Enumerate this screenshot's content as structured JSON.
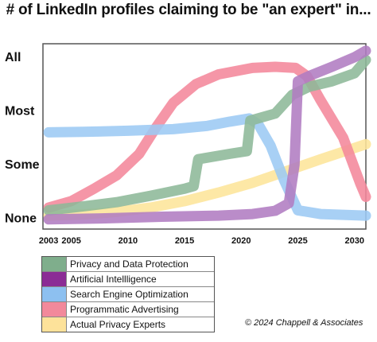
{
  "chart_data": {
    "type": "line",
    "title": "# of LinkedIn profiles claiming to be \"an expert\" in...",
    "xlabel": "",
    "ylabel": "",
    "x_ticks": [
      "2003",
      "2005",
      "2010",
      "2015",
      "2020",
      "2025",
      "2030"
    ],
    "x_tick_values": [
      2003,
      2005,
      2010,
      2015,
      2020,
      2025,
      2030
    ],
    "xlim": [
      2002.5,
      2031
    ],
    "y_ticks": [
      "None",
      "Some",
      "Most",
      "All"
    ],
    "y_tick_values": [
      0,
      1,
      2,
      3
    ],
    "ylim": [
      -0.2,
      3.25
    ],
    "grid": false,
    "legend_position": "bottom-left",
    "series": [
      {
        "name": "Actual Privacy Experts",
        "color": "#fde59a",
        "points": [
          [
            2003,
            0.05
          ],
          [
            2006,
            0.07
          ],
          [
            2009,
            0.12
          ],
          [
            2012,
            0.2
          ],
          [
            2015,
            0.32
          ],
          [
            2018,
            0.48
          ],
          [
            2021,
            0.66
          ],
          [
            2024,
            0.88
          ],
          [
            2027,
            1.1
          ],
          [
            2031,
            1.38
          ]
        ]
      },
      {
        "name": "Programmatic Advertising",
        "color": "#f4889b",
        "points": [
          [
            2003,
            0.2
          ],
          [
            2005,
            0.32
          ],
          [
            2007,
            0.55
          ],
          [
            2009,
            0.8
          ],
          [
            2011,
            1.2
          ],
          [
            2012.5,
            1.7
          ],
          [
            2014,
            2.15
          ],
          [
            2016,
            2.5
          ],
          [
            2018,
            2.68
          ],
          [
            2021,
            2.8
          ],
          [
            2023,
            2.82
          ],
          [
            2024.8,
            2.8
          ],
          [
            2025.8,
            2.65
          ],
          [
            2027,
            2.2
          ],
          [
            2029,
            1.5
          ],
          [
            2030.5,
            0.65
          ],
          [
            2031,
            0.4
          ]
        ]
      },
      {
        "name": "Search Engine Optimization",
        "color": "#9ccaf4",
        "points": [
          [
            2003,
            1.6
          ],
          [
            2006,
            1.61
          ],
          [
            2010,
            1.63
          ],
          [
            2014,
            1.66
          ],
          [
            2017,
            1.72
          ],
          [
            2019,
            1.8
          ],
          [
            2020.7,
            1.86
          ],
          [
            2021.5,
            1.75
          ],
          [
            2022.6,
            1.35
          ],
          [
            2023.8,
            0.7
          ],
          [
            2025,
            0.15
          ],
          [
            2027,
            0.08
          ],
          [
            2031,
            0.05
          ]
        ]
      },
      {
        "name": "Privacy and Data Protection",
        "color": "#8db898",
        "points": [
          [
            2003,
            0.15
          ],
          [
            2006,
            0.22
          ],
          [
            2009,
            0.3
          ],
          [
            2012,
            0.42
          ],
          [
            2015,
            0.55
          ],
          [
            2015.8,
            0.6
          ],
          [
            2016.2,
            1.1
          ],
          [
            2019,
            1.2
          ],
          [
            2020.5,
            1.25
          ],
          [
            2020.8,
            1.82
          ],
          [
            2023,
            1.95
          ],
          [
            2024.5,
            2.3
          ],
          [
            2026,
            2.45
          ],
          [
            2028,
            2.55
          ],
          [
            2030,
            2.7
          ],
          [
            2031,
            2.95
          ]
        ]
      },
      {
        "name": "Artificial Intellligence",
        "color": "#b07cc2",
        "points": [
          [
            2003,
            -0.02
          ],
          [
            2008,
            0.0
          ],
          [
            2013,
            0.03
          ],
          [
            2018,
            0.05
          ],
          [
            2021,
            0.08
          ],
          [
            2023,
            0.14
          ],
          [
            2024.2,
            0.28
          ],
          [
            2024.7,
            1.0
          ],
          [
            2025,
            2.55
          ],
          [
            2026,
            2.65
          ],
          [
            2028,
            2.82
          ],
          [
            2030,
            3.0
          ],
          [
            2031,
            3.12
          ]
        ]
      }
    ],
    "legend": [
      {
        "name": "Privacy and Data Protection",
        "color": "#7fae8c"
      },
      {
        "name": "Artificial Intellligence",
        "color": "#8b2c95"
      },
      {
        "name": "Search Engine Optimization",
        "color": "#8dc0f0"
      },
      {
        "name": "Programmatic Advertising",
        "color": "#f2899b"
      },
      {
        "name": "Actual Privacy Experts",
        "color": "#fde29a"
      }
    ]
  },
  "copyright": "© 2024 Chappell & Associates"
}
